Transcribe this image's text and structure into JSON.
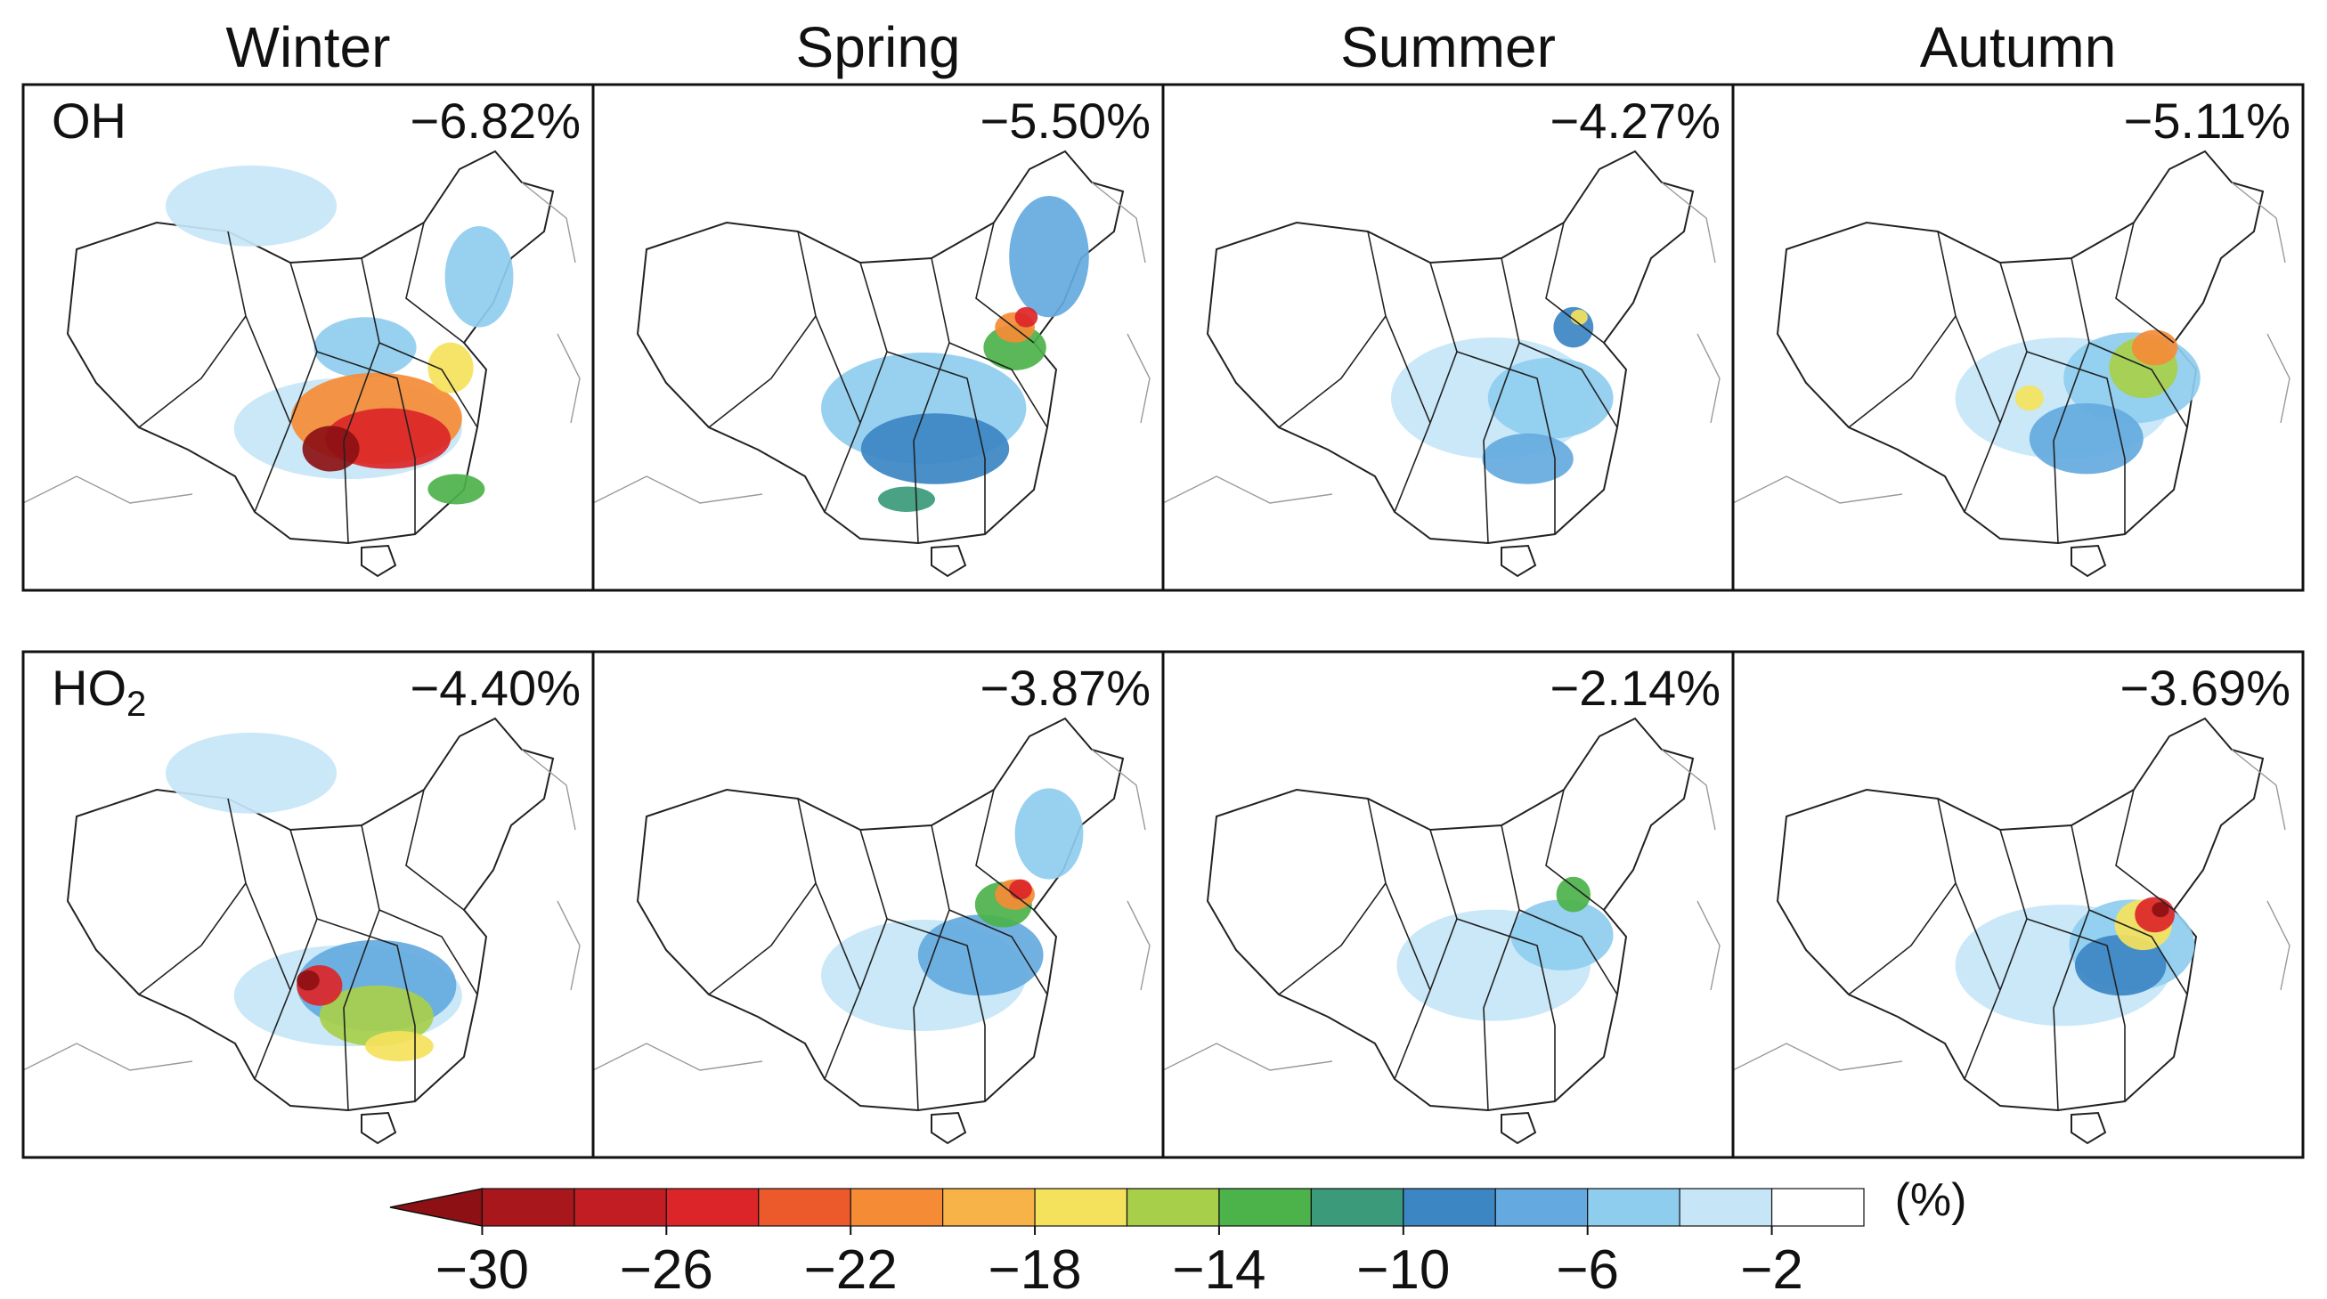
{
  "chart_data": {
    "type": "heatmap",
    "title": "",
    "seasons": [
      "Winter",
      "Spring",
      "Summer",
      "Autumn"
    ],
    "rows": [
      {
        "species": "OH",
        "species_base": "OH",
        "species_sub": "",
        "values": [
          "−6.82%",
          "−5.50%",
          "−4.27%",
          "−5.11%"
        ],
        "numeric": [
          -6.82,
          -5.5,
          -4.27,
          -5.11
        ]
      },
      {
        "species": "HO2",
        "species_base": "HO",
        "species_sub": "2",
        "values": [
          "−4.40%",
          "−3.87%",
          "−2.14%",
          "−3.69%"
        ],
        "numeric": [
          -4.4,
          -3.87,
          -2.14,
          -3.69
        ]
      }
    ],
    "colorbar": {
      "unit": "(%)",
      "range": [
        -32,
        0
      ],
      "tick_labels": [
        "−30",
        "−26",
        "−22",
        "−18",
        "−14",
        "−10",
        "−6",
        "−2"
      ],
      "tick_values": [
        -30,
        -26,
        -22,
        -18,
        -14,
        -10,
        -6,
        -2
      ],
      "bins": [
        {
          "min": -32,
          "max": -30,
          "color": "#8c1014"
        },
        {
          "min": -30,
          "max": -28,
          "color": "#a8171c"
        },
        {
          "min": -28,
          "max": -26,
          "color": "#c21d22"
        },
        {
          "min": -26,
          "max": -24,
          "color": "#dc2528"
        },
        {
          "min": -24,
          "max": -22,
          "color": "#ec5a2c"
        },
        {
          "min": -22,
          "max": -20,
          "color": "#f58b35"
        },
        {
          "min": -20,
          "max": -18,
          "color": "#f8b348"
        },
        {
          "min": -18,
          "max": -16,
          "color": "#f5e25c"
        },
        {
          "min": -16,
          "max": -14,
          "color": "#a8cf4a"
        },
        {
          "min": -14,
          "max": -12,
          "color": "#4cb24a"
        },
        {
          "min": -12,
          "max": -10,
          "color": "#3a9a7a"
        },
        {
          "min": -10,
          "max": -8,
          "color": "#3c86c4"
        },
        {
          "min": -8,
          "max": -6,
          "color": "#64aae0"
        },
        {
          "min": -6,
          "max": -4,
          "color": "#8fcdef"
        },
        {
          "min": -4,
          "max": -2,
          "color": "#c6e6f7"
        },
        {
          "min": -2,
          "max": 0,
          "color": "#ffffff"
        }
      ]
    },
    "hotspots": [
      [
        [
          [
            0.57,
            0.68,
            0.4,
            0.2,
            "#c6e6f7"
          ],
          [
            0.4,
            0.24,
            0.3,
            0.16,
            "#c6e6f7"
          ],
          [
            0.6,
            0.52,
            0.18,
            0.12,
            "#8fcdef"
          ],
          [
            0.8,
            0.38,
            0.12,
            0.2,
            "#8fcdef"
          ],
          [
            0.62,
            0.66,
            0.3,
            0.18,
            "#f58b35"
          ],
          [
            0.64,
            0.7,
            0.22,
            0.12,
            "#dc2528"
          ],
          [
            0.54,
            0.72,
            0.1,
            0.09,
            "#8c1014"
          ],
          [
            0.75,
            0.56,
            0.08,
            0.1,
            "#f5e25c"
          ],
          [
            0.76,
            0.8,
            0.1,
            0.06,
            "#4cb24a"
          ]
        ],
        [
          [
            0.58,
            0.64,
            0.36,
            0.22,
            "#8fcdef"
          ],
          [
            0.8,
            0.34,
            0.14,
            0.24,
            "#64aae0"
          ],
          [
            0.6,
            0.72,
            0.26,
            0.14,
            "#3c86c4"
          ],
          [
            0.74,
            0.52,
            0.11,
            0.09,
            "#4cb24a"
          ],
          [
            0.74,
            0.48,
            0.07,
            0.06,
            "#f58b35"
          ],
          [
            0.76,
            0.46,
            0.04,
            0.04,
            "#dc2528"
          ],
          [
            0.55,
            0.82,
            0.1,
            0.05,
            "#3a9a7a"
          ]
        ],
        [
          [
            0.58,
            0.62,
            0.36,
            0.24,
            "#c6e6f7"
          ],
          [
            0.68,
            0.62,
            0.22,
            0.16,
            "#8fcdef"
          ],
          [
            0.64,
            0.74,
            0.16,
            0.1,
            "#64aae0"
          ],
          [
            0.72,
            0.48,
            0.07,
            0.08,
            "#3c86c4"
          ],
          [
            0.73,
            0.46,
            0.03,
            0.03,
            "#f5e25c"
          ]
        ],
        [
          [
            0.58,
            0.62,
            0.38,
            0.24,
            "#c6e6f7"
          ],
          [
            0.7,
            0.58,
            0.24,
            0.18,
            "#8fcdef"
          ],
          [
            0.62,
            0.7,
            0.2,
            0.14,
            "#64aae0"
          ],
          [
            0.72,
            0.56,
            0.12,
            0.12,
            "#a8cf4a"
          ],
          [
            0.74,
            0.52,
            0.08,
            0.07,
            "#f58b35"
          ],
          [
            0.52,
            0.62,
            0.05,
            0.05,
            "#f5e25c"
          ]
        ]
      ],
      [
        [
          [
            0.57,
            0.68,
            0.4,
            0.2,
            "#c6e6f7"
          ],
          [
            0.4,
            0.24,
            0.3,
            0.16,
            "#c6e6f7"
          ],
          [
            0.62,
            0.66,
            0.28,
            0.18,
            "#64aae0"
          ],
          [
            0.62,
            0.72,
            0.2,
            0.12,
            "#a8cf4a"
          ],
          [
            0.52,
            0.66,
            0.08,
            0.08,
            "#dc2528"
          ],
          [
            0.5,
            0.65,
            0.04,
            0.04,
            "#8c1014"
          ],
          [
            0.66,
            0.78,
            0.12,
            0.06,
            "#f5e25c"
          ]
        ],
        [
          [
            0.58,
            0.64,
            0.36,
            0.22,
            "#c6e6f7"
          ],
          [
            0.8,
            0.36,
            0.12,
            0.18,
            "#8fcdef"
          ],
          [
            0.68,
            0.6,
            0.22,
            0.16,
            "#64aae0"
          ],
          [
            0.72,
            0.5,
            0.1,
            0.09,
            "#4cb24a"
          ],
          [
            0.74,
            0.48,
            0.07,
            0.06,
            "#f58b35"
          ],
          [
            0.75,
            0.47,
            0.04,
            0.04,
            "#dc2528"
          ]
        ],
        [
          [
            0.58,
            0.62,
            0.34,
            0.22,
            "#c6e6f7"
          ],
          [
            0.7,
            0.56,
            0.18,
            0.14,
            "#8fcdef"
          ],
          [
            0.72,
            0.48,
            0.06,
            0.07,
            "#4cb24a"
          ]
        ],
        [
          [
            0.58,
            0.62,
            0.38,
            0.24,
            "#c6e6f7"
          ],
          [
            0.7,
            0.58,
            0.22,
            0.18,
            "#8fcdef"
          ],
          [
            0.68,
            0.62,
            0.16,
            0.12,
            "#3c86c4"
          ],
          [
            0.72,
            0.54,
            0.1,
            0.1,
            "#f5e25c"
          ],
          [
            0.74,
            0.52,
            0.07,
            0.07,
            "#dc2528"
          ],
          [
            0.75,
            0.51,
            0.03,
            0.03,
            "#8c1014"
          ]
        ]
      ]
    ]
  }
}
